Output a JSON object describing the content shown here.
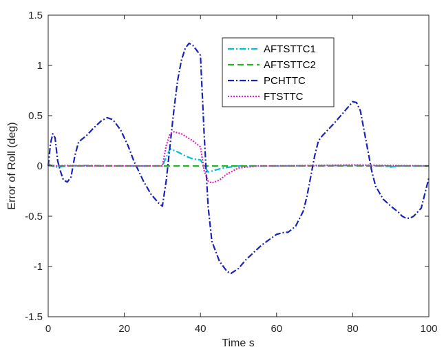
{
  "chart_data": {
    "type": "line",
    "title": "",
    "xlabel": "Time s",
    "ylabel": "Error of Roll (deg)",
    "xlim": [
      0,
      100
    ],
    "ylim": [
      -1.5,
      1.5
    ],
    "xticks": [
      0,
      20,
      40,
      60,
      80,
      100
    ],
    "xtick_labels": [
      "0",
      "20",
      "40",
      "60",
      "80",
      "100"
    ],
    "yticks": [
      -1.5,
      -1,
      -0.5,
      0,
      0.5,
      1,
      1.5
    ],
    "ytick_labels": [
      "-1.5",
      "-1",
      "-0.5",
      "0",
      "0.5",
      "1",
      "1.5"
    ],
    "grid": false,
    "legend_position": "top-center",
    "series": [
      {
        "name": "AFTSTTC1",
        "color": "#00BCD8",
        "dash": "dashdot",
        "points": [
          [
            0,
            0.02
          ],
          [
            1,
            0
          ],
          [
            2,
            -0.01
          ],
          [
            5,
            0
          ],
          [
            10,
            0.005
          ],
          [
            20,
            0
          ],
          [
            30,
            0
          ],
          [
            32,
            0.17
          ],
          [
            34,
            0.14
          ],
          [
            36,
            0.1
          ],
          [
            38,
            0.07
          ],
          [
            40,
            0.06
          ],
          [
            42,
            -0.06
          ],
          [
            44,
            -0.04
          ],
          [
            46,
            -0.02
          ],
          [
            50,
            0
          ],
          [
            60,
            0
          ],
          [
            80,
            0.005
          ],
          [
            88,
            0
          ],
          [
            90,
            -0.01
          ],
          [
            92,
            0
          ],
          [
            100,
            0
          ]
        ]
      },
      {
        "name": "AFTSTTC2",
        "color": "#22B522",
        "dash": "dashed",
        "points": [
          [
            0,
            0.01
          ],
          [
            2,
            0
          ],
          [
            5,
            0
          ],
          [
            20,
            0
          ],
          [
            40,
            0
          ],
          [
            50,
            0
          ],
          [
            60,
            0
          ],
          [
            80,
            0
          ],
          [
            100,
            0
          ]
        ]
      },
      {
        "name": "PCHTTC",
        "color": "#1A23B5",
        "dash": "dashdot",
        "points": [
          [
            0,
            0
          ],
          [
            0.6,
            0.22
          ],
          [
            1.2,
            0.32
          ],
          [
            1.8,
            0.28
          ],
          [
            2.5,
            0.05
          ],
          [
            3.2,
            -0.05
          ],
          [
            4,
            -0.14
          ],
          [
            5,
            -0.16
          ],
          [
            6,
            -0.11
          ],
          [
            7,
            0.1
          ],
          [
            8,
            0.24
          ],
          [
            10,
            0.3
          ],
          [
            12,
            0.38
          ],
          [
            14,
            0.45
          ],
          [
            15.5,
            0.48
          ],
          [
            17,
            0.46
          ],
          [
            19,
            0.36
          ],
          [
            21,
            0.2
          ],
          [
            22.5,
            0.05
          ],
          [
            23.5,
            -0.03
          ],
          [
            25,
            -0.15
          ],
          [
            27,
            -0.28
          ],
          [
            29,
            -0.37
          ],
          [
            30,
            -0.4
          ],
          [
            31,
            -0.15
          ],
          [
            32,
            0.2
          ],
          [
            33,
            0.55
          ],
          [
            34,
            0.85
          ],
          [
            35,
            1.05
          ],
          [
            36,
            1.17
          ],
          [
            37,
            1.22
          ],
          [
            38,
            1.2
          ],
          [
            39,
            1.15
          ],
          [
            40,
            1.1
          ],
          [
            41,
            0.3
          ],
          [
            42,
            -0.4
          ],
          [
            43,
            -0.75
          ],
          [
            45,
            -0.95
          ],
          [
            47,
            -1.05
          ],
          [
            48,
            -1.07
          ],
          [
            50,
            -1.02
          ],
          [
            52,
            -0.93
          ],
          [
            56,
            -0.79
          ],
          [
            60,
            -0.68
          ],
          [
            62,
            -0.66
          ],
          [
            63,
            -0.66
          ],
          [
            65,
            -0.6
          ],
          [
            67,
            -0.45
          ],
          [
            68,
            -0.3
          ],
          [
            69,
            -0.1
          ],
          [
            70,
            0.1
          ],
          [
            71,
            0.25
          ],
          [
            72,
            0.3
          ],
          [
            75,
            0.42
          ],
          [
            78,
            0.55
          ],
          [
            80,
            0.64
          ],
          [
            81,
            0.63
          ],
          [
            82,
            0.55
          ],
          [
            83,
            0.35
          ],
          [
            84,
            0.15
          ],
          [
            85,
            -0.05
          ],
          [
            86,
            -0.2
          ],
          [
            88,
            -0.33
          ],
          [
            90,
            -0.4
          ],
          [
            92,
            -0.46
          ],
          [
            93,
            -0.5
          ],
          [
            94,
            -0.52
          ],
          [
            95,
            -0.52
          ],
          [
            96,
            -0.5
          ],
          [
            98,
            -0.42
          ],
          [
            100,
            -0.12
          ]
        ]
      },
      {
        "name": "FTSTTC",
        "color": "#E020C8",
        "dash": "dotted",
        "points": [
          [
            0,
            0.02
          ],
          [
            1,
            0
          ],
          [
            2,
            0
          ],
          [
            5,
            0.005
          ],
          [
            10,
            0
          ],
          [
            20,
            0
          ],
          [
            30,
            0
          ],
          [
            31,
            0.2
          ],
          [
            32,
            0.32
          ],
          [
            33,
            0.34
          ],
          [
            35,
            0.32
          ],
          [
            38,
            0.25
          ],
          [
            40,
            0.19
          ],
          [
            41,
            -0.05
          ],
          [
            42,
            -0.15
          ],
          [
            43,
            -0.17
          ],
          [
            45,
            -0.14
          ],
          [
            47,
            -0.08
          ],
          [
            50,
            -0.02
          ],
          [
            55,
            0
          ],
          [
            60,
            0
          ],
          [
            80,
            0.01
          ],
          [
            100,
            0
          ]
        ]
      }
    ]
  }
}
